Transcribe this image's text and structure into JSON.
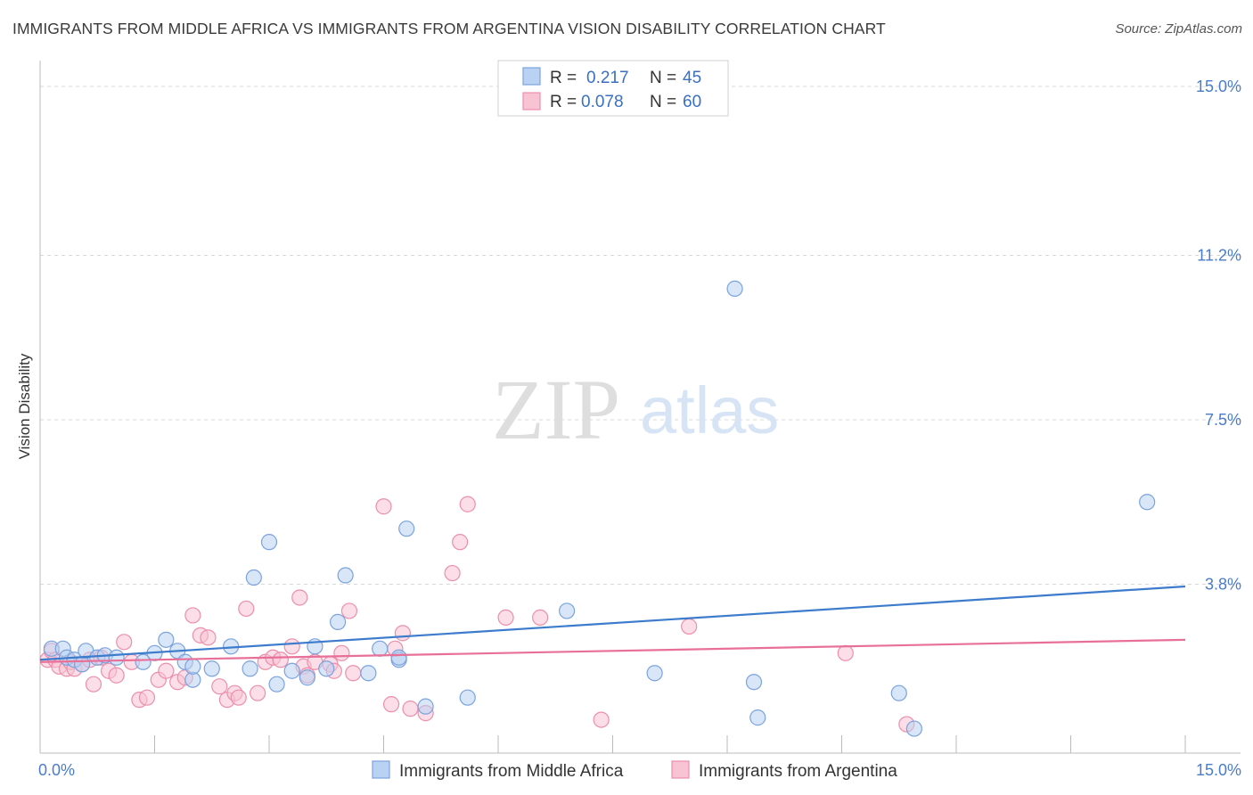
{
  "header": {
    "title": "IMMIGRANTS FROM MIDDLE AFRICA VS IMMIGRANTS FROM ARGENTINA VISION DISABILITY CORRELATION CHART",
    "source": "Source: ZipAtlas.com"
  },
  "watermark": {
    "zip": "ZIP",
    "atlas": "atlas"
  },
  "legend_top": {
    "r_label": "R =",
    "n_label": "N =",
    "entries": [
      {
        "r": "0.217",
        "n": "45"
      },
      {
        "r": "0.078",
        "n": "60"
      }
    ]
  },
  "colors": {
    "blue_fill": "#b9d1f2",
    "blue_stroke": "#7aa3de",
    "blue_line": "#3d7ccc",
    "pink_fill": "#f8c3d3",
    "pink_stroke": "#ec8fac",
    "pink_line": "#e87098",
    "grid": "#d8d8d8",
    "tick": "#4a7cc9"
  },
  "chart_data": {
    "type": "scatter",
    "title": "IMMIGRANTS FROM MIDDLE AFRICA VS IMMIGRANTS FROM ARGENTINA VISION DISABILITY CORRELATION CHART",
    "xlabel": "",
    "ylabel": "Vision Disability",
    "xlim": [
      0,
      15
    ],
    "ylim": [
      0,
      15
    ],
    "x_tick_labels": [
      "0.0%",
      "15.0%"
    ],
    "y_ticks": [
      3.8,
      7.5,
      11.2,
      15.0
    ],
    "y_tick_labels": [
      "3.8%",
      "7.5%",
      "11.2%",
      "15.0%"
    ],
    "grid": true,
    "legend": "top-center",
    "series": [
      {
        "name": "Immigrants from Middle Africa",
        "r": 0.217,
        "n": 45,
        "trend": [
          [
            0,
            2.1
          ],
          [
            15,
            3.75
          ]
        ],
        "points": [
          [
            0.15,
            2.35
          ],
          [
            0.3,
            2.35
          ],
          [
            0.35,
            2.15
          ],
          [
            0.45,
            2.1
          ],
          [
            0.55,
            2.0
          ],
          [
            0.6,
            2.3
          ],
          [
            0.75,
            2.15
          ],
          [
            0.85,
            2.2
          ],
          [
            1.0,
            2.15
          ],
          [
            1.35,
            2.05
          ],
          [
            1.5,
            2.25
          ],
          [
            1.65,
            2.55
          ],
          [
            1.8,
            2.3
          ],
          [
            1.9,
            2.05
          ],
          [
            2.0,
            1.65
          ],
          [
            2.0,
            1.95
          ],
          [
            2.25,
            1.9
          ],
          [
            2.5,
            2.4
          ],
          [
            2.75,
            1.9
          ],
          [
            2.8,
            3.95
          ],
          [
            3.0,
            4.75
          ],
          [
            3.1,
            1.55
          ],
          [
            3.3,
            1.85
          ],
          [
            3.5,
            1.7
          ],
          [
            3.6,
            2.4
          ],
          [
            3.75,
            1.9
          ],
          [
            3.9,
            2.95
          ],
          [
            4.0,
            4.0
          ],
          [
            4.3,
            1.8
          ],
          [
            4.45,
            2.35
          ],
          [
            4.7,
            2.1
          ],
          [
            4.7,
            2.15
          ],
          [
            4.8,
            5.05
          ],
          [
            5.05,
            1.05
          ],
          [
            5.6,
            1.25
          ],
          [
            6.9,
            3.2
          ],
          [
            8.05,
            1.8
          ],
          [
            9.1,
            10.45
          ],
          [
            9.35,
            1.6
          ],
          [
            9.4,
            0.8
          ],
          [
            11.25,
            1.35
          ],
          [
            11.45,
            0.55
          ],
          [
            14.5,
            5.65
          ]
        ]
      },
      {
        "name": "Immigrants from Argentina",
        "r": 0.078,
        "n": 60,
        "trend": [
          [
            0,
            2.05
          ],
          [
            15,
            2.55
          ]
        ],
        "points": [
          [
            0.1,
            2.1
          ],
          [
            0.15,
            2.3
          ],
          [
            0.2,
            2.1
          ],
          [
            0.25,
            1.95
          ],
          [
            0.35,
            1.9
          ],
          [
            0.4,
            2.05
          ],
          [
            0.45,
            1.9
          ],
          [
            0.55,
            2.0
          ],
          [
            0.65,
            2.1
          ],
          [
            0.7,
            1.55
          ],
          [
            0.8,
            2.15
          ],
          [
            0.9,
            1.85
          ],
          [
            1.0,
            1.75
          ],
          [
            1.1,
            2.5
          ],
          [
            1.2,
            2.05
          ],
          [
            1.3,
            1.2
          ],
          [
            1.4,
            1.25
          ],
          [
            1.55,
            1.65
          ],
          [
            1.65,
            1.85
          ],
          [
            1.8,
            1.6
          ],
          [
            1.9,
            1.7
          ],
          [
            2.0,
            3.1
          ],
          [
            2.1,
            2.65
          ],
          [
            2.2,
            2.6
          ],
          [
            2.35,
            1.5
          ],
          [
            2.45,
            1.2
          ],
          [
            2.55,
            1.35
          ],
          [
            2.6,
            1.25
          ],
          [
            2.7,
            3.25
          ],
          [
            2.85,
            1.35
          ],
          [
            2.95,
            2.05
          ],
          [
            3.05,
            2.15
          ],
          [
            3.15,
            2.1
          ],
          [
            3.3,
            2.4
          ],
          [
            3.4,
            3.5
          ],
          [
            3.45,
            1.95
          ],
          [
            3.5,
            1.75
          ],
          [
            3.6,
            2.05
          ],
          [
            3.8,
            2.0
          ],
          [
            3.85,
            1.85
          ],
          [
            3.95,
            2.25
          ],
          [
            4.05,
            3.2
          ],
          [
            4.1,
            1.8
          ],
          [
            4.5,
            5.55
          ],
          [
            4.6,
            1.1
          ],
          [
            4.65,
            2.35
          ],
          [
            4.75,
            2.7
          ],
          [
            4.85,
            1.0
          ],
          [
            5.05,
            0.9
          ],
          [
            5.4,
            4.05
          ],
          [
            5.5,
            4.75
          ],
          [
            5.6,
            5.6
          ],
          [
            6.1,
            3.05
          ],
          [
            6.55,
            3.05
          ],
          [
            7.35,
            0.75
          ],
          [
            8.5,
            2.85
          ],
          [
            10.55,
            2.25
          ],
          [
            11.35,
            0.65
          ]
        ]
      }
    ]
  }
}
